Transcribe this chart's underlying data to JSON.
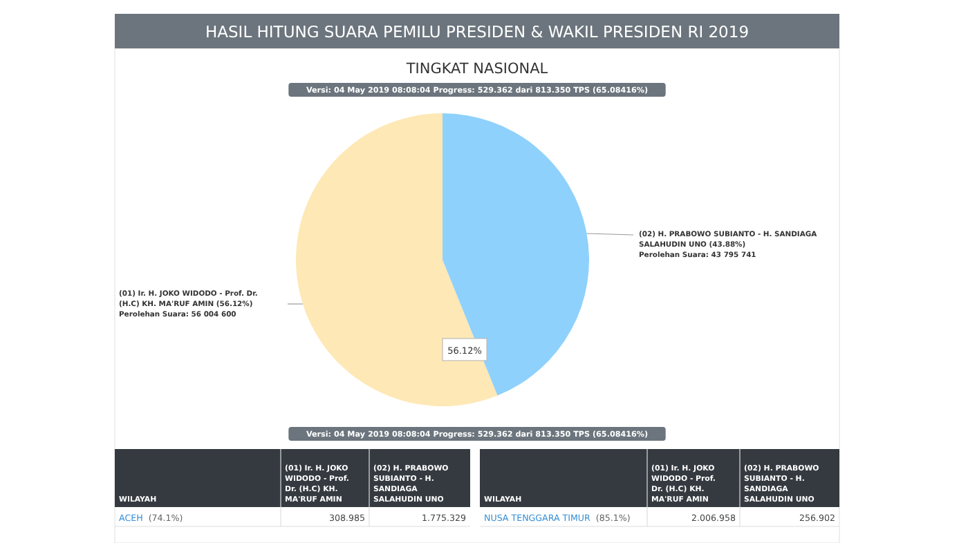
{
  "chart_data": [
    {
      "type": "pie",
      "title": "HASIL HITUNG SUARA PEMILU PRESIDEN & WAKIL PRESIDEN RI 2019",
      "subtitle": "TINGKAT NASIONAL",
      "categories": [
        "(01) Ir. H. JOKO WIDODO - Prof. Dr. (H.C) KH. MA'RUF AMIN",
        "(02) H. PRABOWO SUBIANTO - H. SANDIAGA SALAHUDIN UNO"
      ],
      "values": [
        56.12,
        43.88
      ],
      "colors": [
        "#fee8b5",
        "#8ed1fc"
      ],
      "value_labels": [
        "(56.12%)",
        "(43.88%)"
      ],
      "annotations": [
        "Versi: 04 May 2019 08:08:04 Progress: 529.362 dari 813.350 TPS (65.08416%)",
        {
          "text": "Perolehan Suara: 56 004 600",
          "x": "(01) Ir. H. JOKO WIDODO - Prof. Dr. (H.C) KH. MA'RUF AMIN"
        },
        {
          "text": "Perolehan Suara: 43 795 741",
          "x": "(02) H. PRABOWO SUBIANTO - H. SANDIAGA SALAHUDIN UNO"
        },
        {
          "text": "56.12%",
          "x": "(01) Ir. H. JOKO WIDODO - Prof. Dr. (H.C) KH. MA'RUF AMIN"
        },
        "Versi: 04 May 2019 08:08:04 Progress: 529.362 dari 813.350 TPS (65.08416%)"
      ]
    },
    {
      "type": "other",
      "annotations": [
        "WILAYAH",
        "(01) Ir. H. JOKO WIDODO - Prof. Dr. (H.C) KH. MA'RUF AMIN",
        "(02) H. PRABOWO SUBIANTO - H. SANDIAGA SALAHUDIN UNO",
        "ACEH",
        "(74.1%)",
        "308.985",
        "1.775.329"
      ]
    },
    {
      "type": "other",
      "annotations": [
        "WILAYAH",
        "(01) Ir. H. JOKO WIDODO - Prof. Dr. (H.C) KH. MA'RUF AMIN",
        "(02) H. PRABOWO SUBIANTO - H. SANDIAGA SALAHUDIN UNO",
        "NUSA TENGGARA TIMUR",
        "(85.1%)",
        "2.006.958",
        "256.902"
      ]
    }
  ]
}
